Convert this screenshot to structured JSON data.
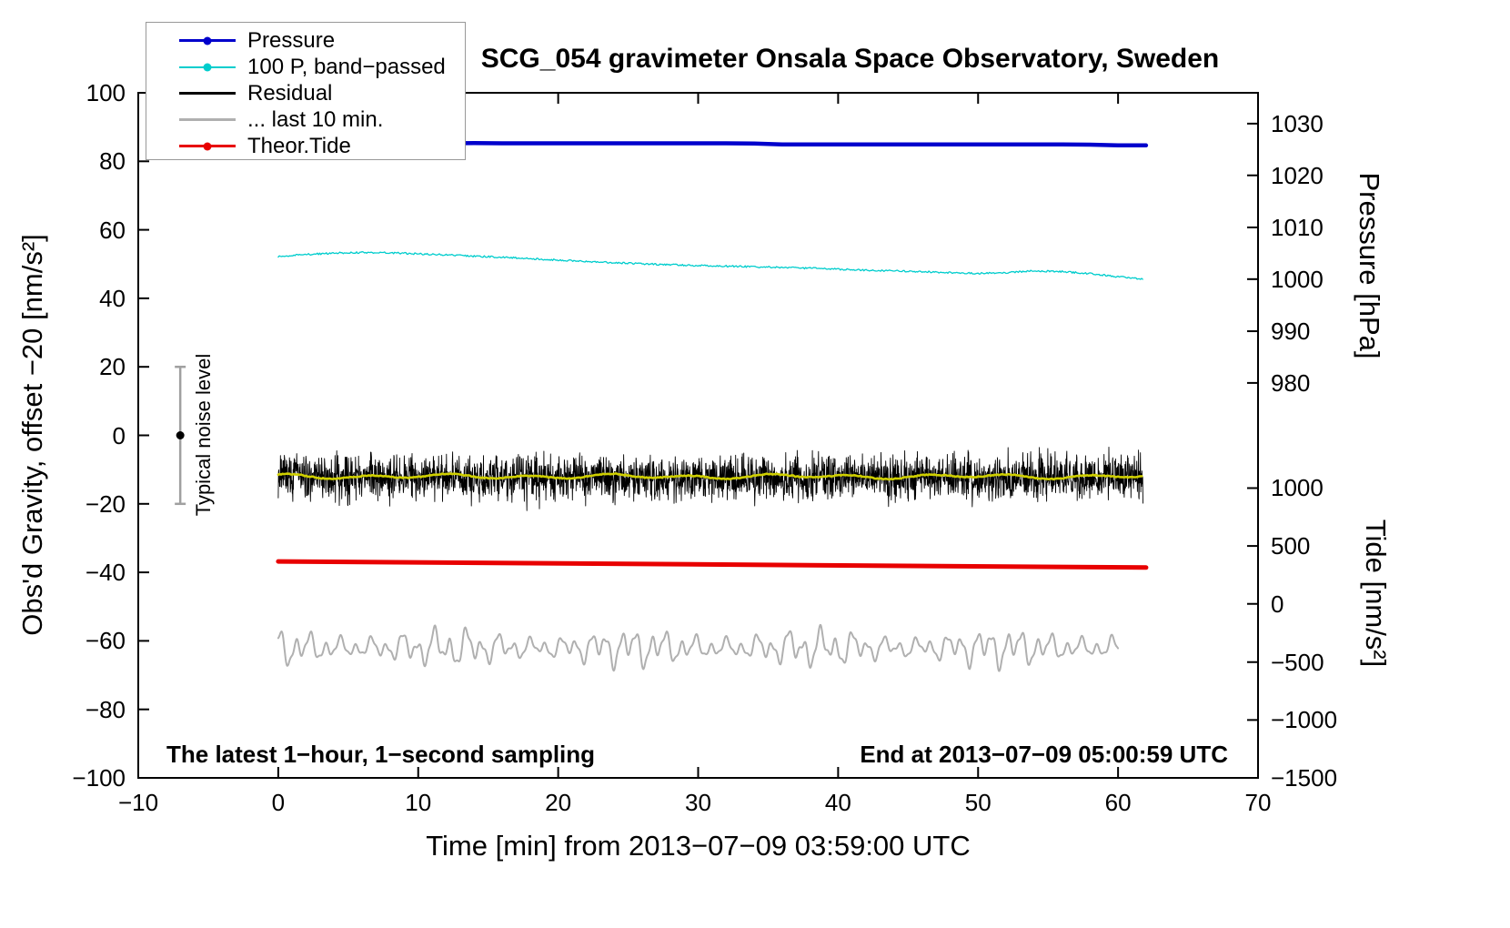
{
  "chart_data": {
    "type": "line",
    "title": "SCG_054 gravimeter Onsala Space Observatory, Sweden",
    "xlabel": "Time [min] from 2013−07−09 03:59:00 UTC",
    "ylabel_left": "Obs'd Gravity, offset −20 [nm/s²]",
    "ylabel_pressure": "Pressure [hPa]",
    "ylabel_tide": "Tide [nm/s²]",
    "annotations": {
      "sampling_note": "The latest 1−hour, 1−second sampling",
      "end_note": "End at 2013−07−09 05:00:59 UTC",
      "noise_label": "Typical noise level"
    },
    "xlim": [
      -10,
      70
    ],
    "ylim_left": [
      -100,
      100
    ],
    "x_ticks": [
      -10,
      0,
      10,
      20,
      30,
      40,
      50,
      60,
      70
    ],
    "y_ticks_left": [
      -100,
      -80,
      -60,
      -40,
      -20,
      0,
      20,
      40,
      60,
      80,
      100
    ],
    "pressure_axis": {
      "p_ref": 1030,
      "g_ref": 91.0,
      "g_per_hpa": 1.514
    },
    "pressure_ticks": [
      {
        "label": "1030",
        "g": 91.0
      },
      {
        "label": "1020",
        "g": 75.9
      },
      {
        "label": "1010",
        "g": 60.7
      },
      {
        "label": "1000",
        "g": 45.6
      },
      {
        "label": "990",
        "g": 30.4
      },
      {
        "label": "980",
        "g": 15.3
      }
    ],
    "tide_ticks": [
      {
        "label": "1000",
        "g": -15.4
      },
      {
        "label": "500",
        "g": -32.3
      },
      {
        "label": "0",
        "g": -49.2
      },
      {
        "label": "−500",
        "g": -66.2
      },
      {
        "label": "−1000",
        "g": -83.1
      },
      {
        "label": "−1500",
        "g": -100.0
      }
    ],
    "legend": [
      {
        "label": "Pressure",
        "color": "#0000cc",
        "dot": true,
        "weight": 3
      },
      {
        "label": "100 P, band−passed",
        "color": "#00cdcd",
        "dot": true,
        "weight": 2
      },
      {
        "label": "Residual",
        "color": "#000000",
        "dot": false,
        "weight": 3
      },
      {
        "label": "... last 10 min.",
        "color": "#b0b0b0",
        "dot": false,
        "weight": 3
      },
      {
        "label": "Theor.Tide",
        "color": "#e80000",
        "dot": true,
        "weight": 3
      }
    ],
    "noise_bar": {
      "x": -7,
      "center_g": 0,
      "half_range_g": 20,
      "color": "#a0a0a0"
    },
    "series": {
      "pressure": {
        "color": "#0000cc",
        "width": 4.5,
        "x_start": 0,
        "x_step": 2,
        "hpa": [
          1026.2,
          1026.2,
          1026.25,
          1026.2,
          1026.2,
          1026.2,
          1026.2,
          1026.25,
          1026.2,
          1026.2,
          1026.2,
          1026.2,
          1026.2,
          1026.2,
          1026.2,
          1026.2,
          1026.2,
          1026.15,
          1026.0,
          1026.0,
          1026.0,
          1026.0,
          1026.0,
          1026.0,
          1026.0,
          1026.0,
          1026.0,
          1026.0,
          1026.0,
          1025.95,
          1025.8,
          1025.8
        ]
      },
      "band_passed": {
        "color": "#00cdcd",
        "width": 1.3,
        "x_start": 0,
        "x_step": 2,
        "jitter_g": 0.25,
        "g": [
          52.2,
          52.8,
          53.2,
          53.4,
          53.3,
          53.0,
          52.7,
          52.3,
          52.0,
          51.6,
          51.2,
          50.8,
          50.4,
          50.1,
          49.8,
          49.6,
          49.4,
          49.2,
          49.0,
          48.8,
          48.5,
          48.2,
          48.0,
          47.8,
          47.5,
          47.3,
          47.5,
          48.0,
          47.8,
          47.2,
          46.3,
          45.6
        ]
      },
      "residual": {
        "color": "#000000",
        "width": 0.9,
        "x_start": 0,
        "x_end": 61.8,
        "baseline_g": -12.2,
        "noise_scale": 5.4
      },
      "residual_smooth": {
        "color": "#cfcf00",
        "width": 2.6,
        "x_start": 0,
        "x_end": 61.8,
        "baseline_g": -12.0,
        "wiggle_g": 0.6
      },
      "theor_tide": {
        "color": "#e80000",
        "width": 5,
        "x": [
          0,
          62
        ],
        "g": [
          -36.8,
          -38.6
        ]
      },
      "last10": {
        "color": "#b0b0b0",
        "width": 2,
        "x_start": 0,
        "x_end": 60,
        "baseline_g": -62,
        "amp_g": 4.5
      }
    }
  }
}
